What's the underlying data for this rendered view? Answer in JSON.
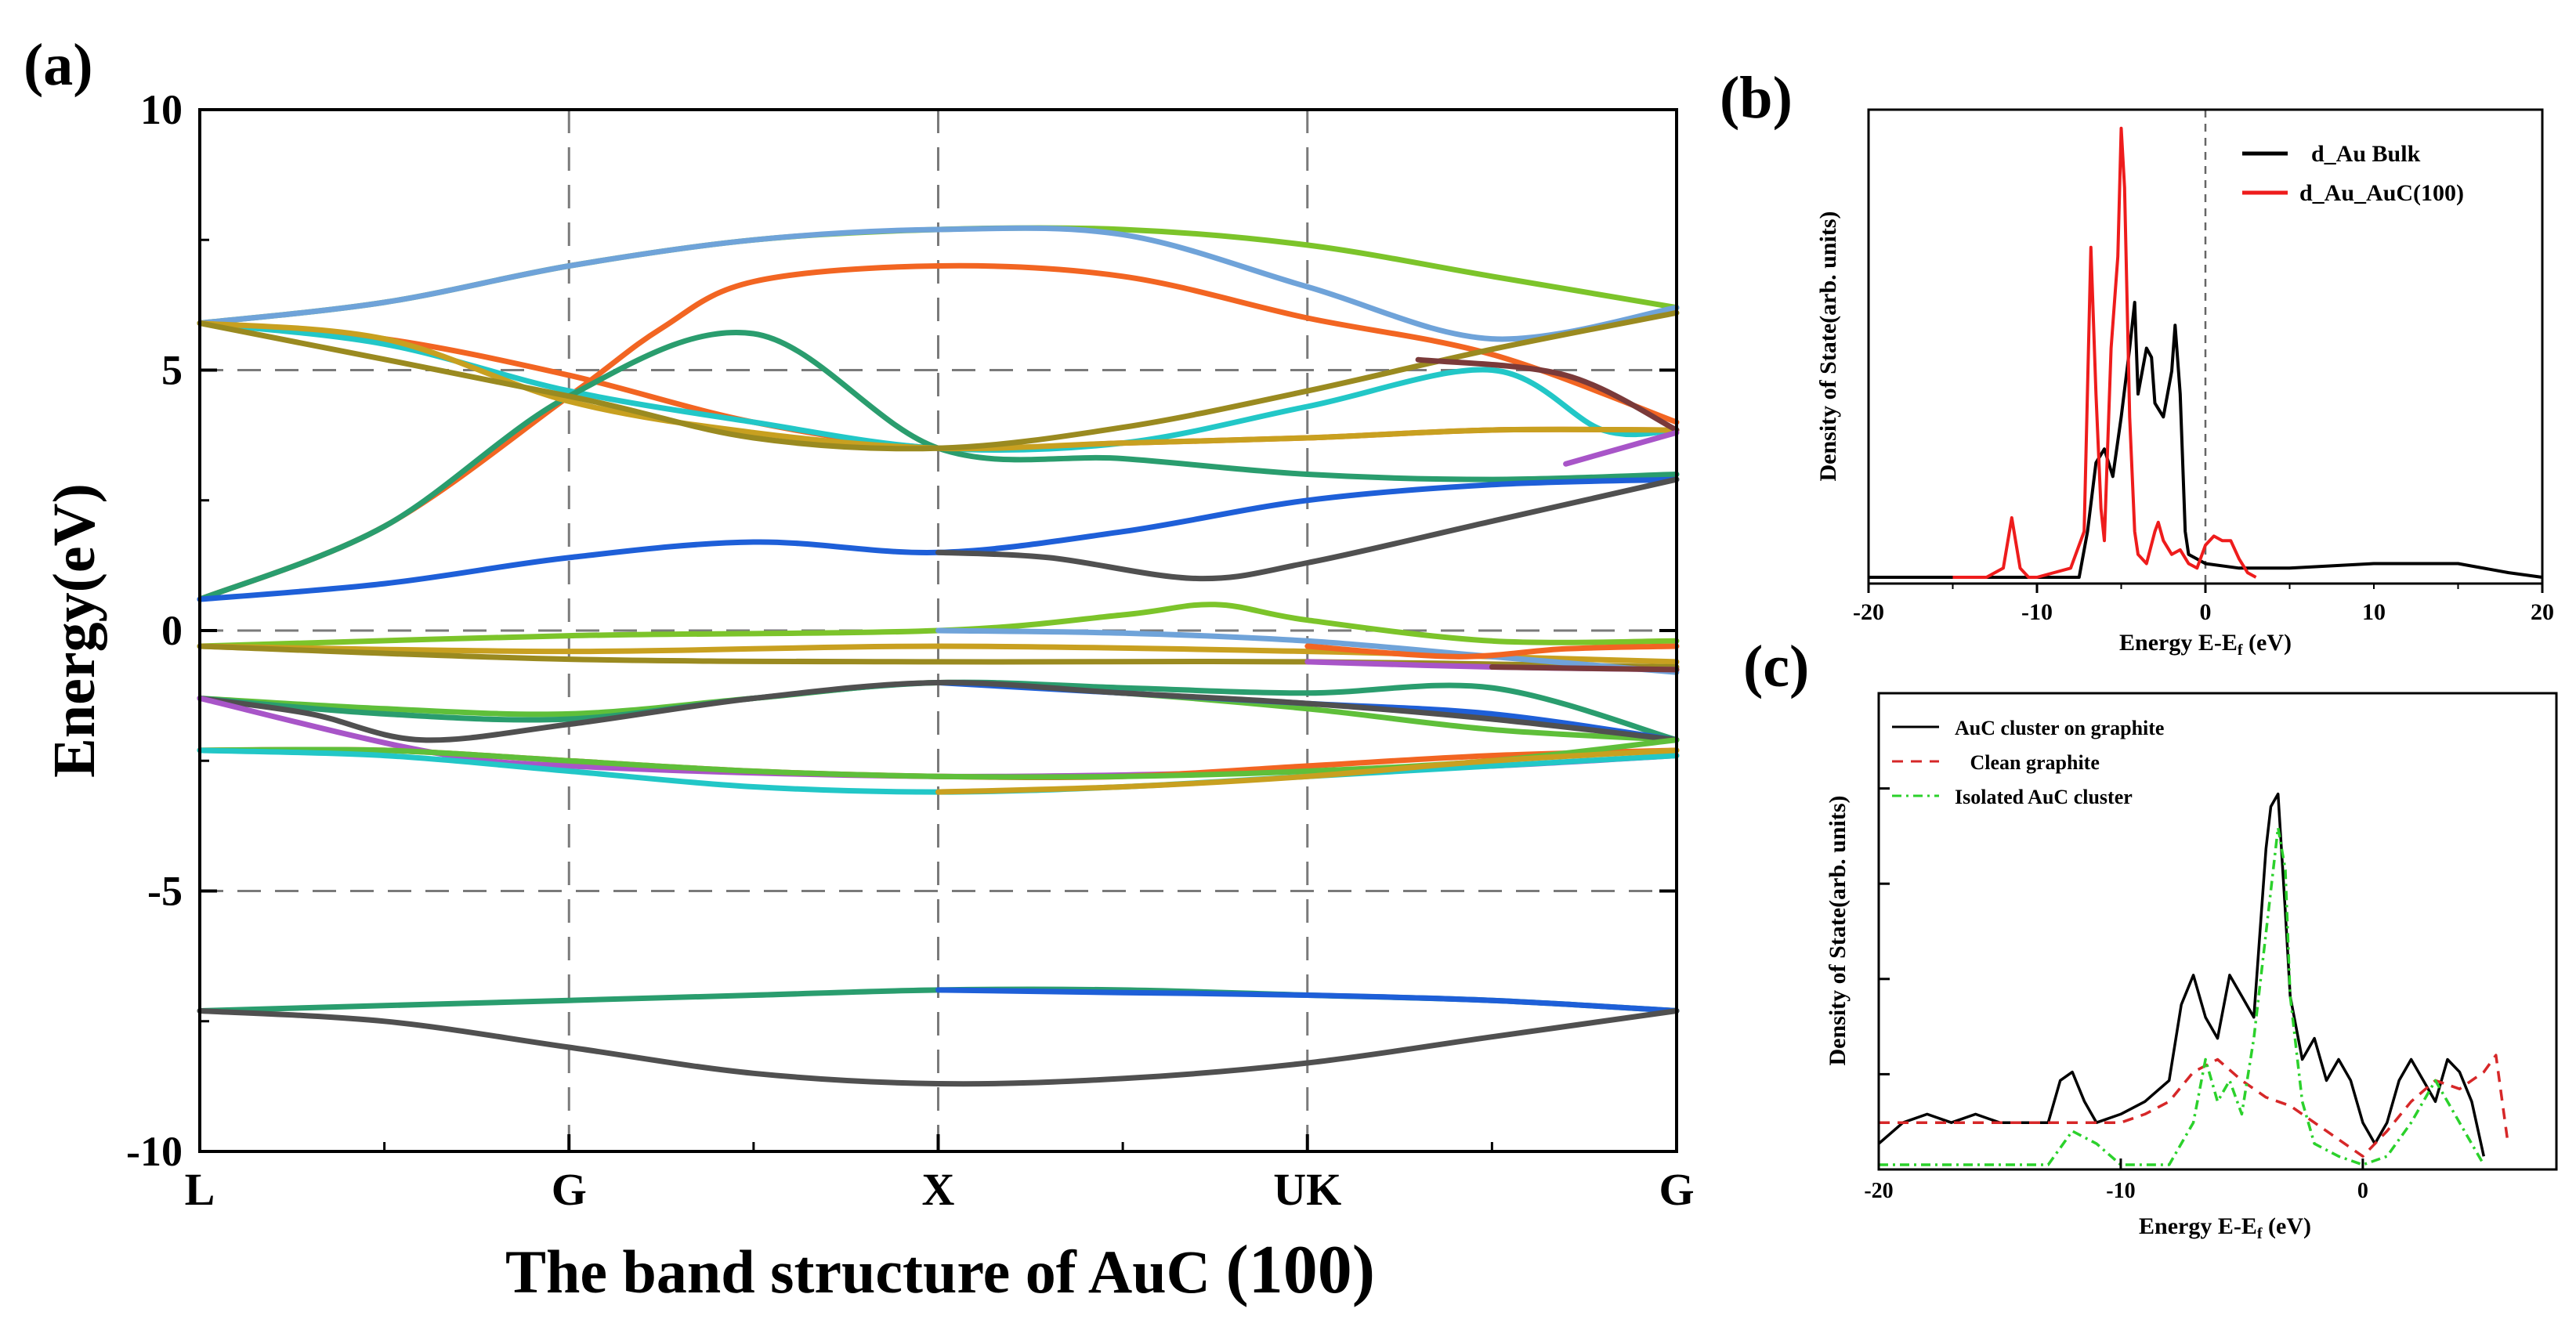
{
  "panel_labels": {
    "a": "(a)",
    "b": "(b)",
    "c": "(c)"
  },
  "chart_data": [
    {
      "id": "a",
      "type": "line",
      "title": "The band structure of AuC (100)",
      "title_main": "The band structure of AuC ",
      "title_tail": "(100)",
      "xlabel": "",
      "ylabel": "Energy(eV)",
      "ylim": [
        -10,
        10
      ],
      "yticks": [
        10,
        5,
        0,
        -5,
        -10
      ],
      "xlim": [
        0,
        4
      ],
      "kpoints": [
        {
          "label": "L",
          "x": 0
        },
        {
          "label": "G",
          "x": 1
        },
        {
          "label": "X",
          "x": 2
        },
        {
          "label": "UK",
          "x": 3
        },
        {
          "label": "G",
          "x": 4
        }
      ],
      "grid_y": [
        5,
        0,
        -5
      ],
      "grid_x": [
        1,
        2,
        3
      ],
      "series": [
        {
          "name": "band-green-top",
          "color": "#7cc42a",
          "x": [
            0,
            0.5,
            1,
            1.5,
            2,
            2.5,
            3,
            3.5,
            4
          ],
          "y": [
            5.9,
            6.3,
            7.0,
            7.5,
            7.7,
            7.7,
            7.4,
            6.8,
            6.2
          ]
        },
        {
          "name": "band-lightblue",
          "color": "#6fa3d9",
          "x": [
            0,
            0.5,
            1,
            1.5,
            2,
            2.5,
            3,
            3.5,
            4
          ],
          "y": [
            5.9,
            6.3,
            7.0,
            7.5,
            7.7,
            7.6,
            6.6,
            5.6,
            6.2
          ]
        },
        {
          "name": "band-orange-up",
          "color": "#f26522",
          "x": [
            0,
            0.5,
            1,
            1.25,
            1.5,
            2,
            2.5,
            3,
            3.5,
            4
          ],
          "y": [
            0.6,
            2.0,
            4.5,
            5.8,
            6.7,
            7.0,
            6.8,
            6.0,
            5.3,
            4.0
          ]
        },
        {
          "name": "band-orange-down",
          "color": "#f26522",
          "x": [
            0,
            0.5,
            1,
            1.5,
            2,
            2.5,
            3,
            3.5,
            4
          ],
          "y": [
            5.9,
            5.6,
            4.9,
            4.0,
            3.5,
            3.6,
            3.7,
            3.85,
            3.85
          ]
        },
        {
          "name": "band-cyan",
          "color": "#22c7c7",
          "x": [
            0,
            0.5,
            1,
            1.5,
            2,
            2.5,
            3,
            3.5,
            3.8,
            4
          ],
          "y": [
            5.9,
            5.5,
            4.6,
            4.0,
            3.5,
            3.6,
            4.3,
            5.0,
            3.85,
            3.85
          ]
        },
        {
          "name": "band-tealgreen-up",
          "color": "#2a9d6e",
          "x": [
            0,
            0.5,
            1,
            1.5,
            2,
            2.5,
            3,
            3.5,
            4
          ],
          "y": [
            0.6,
            2.0,
            4.5,
            5.7,
            3.5,
            3.3,
            3.0,
            2.9,
            3.0
          ]
        },
        {
          "name": "band-gold",
          "color": "#c8a020",
          "x": [
            0,
            0.5,
            1,
            1.5,
            2,
            2.5,
            3,
            3.5,
            4
          ],
          "y": [
            5.9,
            5.6,
            4.4,
            3.8,
            3.5,
            3.6,
            3.7,
            3.85,
            3.85
          ]
        },
        {
          "name": "band-olive",
          "color": "#9a8a20",
          "x": [
            0,
            1,
            1.5,
            2,
            2.5,
            3,
            3.5,
            4
          ],
          "y": [
            5.9,
            4.5,
            3.7,
            3.5,
            3.9,
            4.6,
            5.4,
            6.1
          ]
        },
        {
          "name": "band-maroon",
          "color": "#7a3a3a",
          "x": [
            3.3,
            3.7,
            4
          ],
          "y": [
            5.2,
            4.9,
            3.85
          ]
        },
        {
          "name": "band-purple-top",
          "color": "#a855c8",
          "x": [
            3.7,
            4
          ],
          "y": [
            3.2,
            3.8
          ]
        },
        {
          "name": "band-blue-mid",
          "color": "#1e5fd8",
          "x": [
            0,
            0.5,
            1,
            1.5,
            2,
            2.5,
            3,
            3.5,
            4
          ],
          "y": [
            0.6,
            0.9,
            1.4,
            1.7,
            1.5,
            1.9,
            2.5,
            2.8,
            2.9
          ]
        },
        {
          "name": "band-gray-mid",
          "color": "#505050",
          "x": [
            2,
            2.3,
            2.7,
            3,
            3.5,
            4
          ],
          "y": [
            1.5,
            1.4,
            1.0,
            1.3,
            2.1,
            2.9
          ]
        },
        {
          "name": "band-green-05",
          "color": "#7cc42a",
          "x": [
            0,
            1,
            2,
            2.5,
            2.75,
            3,
            3.5,
            4
          ],
          "y": [
            -0.3,
            -0.1,
            0.0,
            0.3,
            0.5,
            0.2,
            -0.2,
            -0.2
          ]
        },
        {
          "name": "band-gold-0",
          "color": "#c8a020",
          "x": [
            0,
            1,
            2,
            3,
            3.5,
            4
          ],
          "y": [
            -0.3,
            -0.4,
            -0.3,
            -0.4,
            -0.5,
            -0.6
          ]
        },
        {
          "name": "band-olive-0",
          "color": "#9a8a20",
          "x": [
            0,
            1,
            2,
            3,
            4
          ],
          "y": [
            -0.3,
            -0.55,
            -0.6,
            -0.6,
            -0.7
          ]
        },
        {
          "name": "band-lightblue-0",
          "color": "#6fa3d9",
          "x": [
            2,
            2.5,
            3,
            3.5,
            4
          ],
          "y": [
            0.0,
            -0.05,
            -0.2,
            -0.5,
            -0.8
          ]
        },
        {
          "name": "band-purple-0",
          "color": "#a855c8",
          "x": [
            3,
            3.5,
            4
          ],
          "y": [
            -0.6,
            -0.7,
            -0.75
          ]
        },
        {
          "name": "band-orange-0",
          "color": "#f26522",
          "x": [
            3,
            3.4,
            3.7,
            4
          ],
          "y": [
            -0.3,
            -0.5,
            -0.35,
            -0.3
          ]
        },
        {
          "name": "band-maroon-0",
          "color": "#7a3a3a",
          "x": [
            3.5,
            4
          ],
          "y": [
            -0.7,
            -0.75
          ]
        },
        {
          "name": "band-green-m1",
          "color": "#5fbf3a",
          "x": [
            0,
            0.5,
            1,
            1.5,
            2,
            2.5,
            3,
            3.5,
            4
          ],
          "y": [
            -1.3,
            -1.5,
            -1.6,
            -1.3,
            -1.0,
            -1.2,
            -1.5,
            -1.9,
            -2.1
          ]
        },
        {
          "name": "band-tealgreen-m1",
          "color": "#2a9d6e",
          "x": [
            0,
            0.5,
            1,
            1.5,
            2,
            2.5,
            3,
            3.5,
            4
          ],
          "y": [
            -1.3,
            -1.6,
            -1.7,
            -1.3,
            -1.0,
            -1.1,
            -1.2,
            -1.1,
            -2.1
          ]
        },
        {
          "name": "band-blue-m1",
          "color": "#1e5fd8",
          "x": [
            2,
            2.5,
            3,
            3.5,
            4
          ],
          "y": [
            -1.0,
            -1.2,
            -1.4,
            -1.6,
            -2.1
          ]
        },
        {
          "name": "band-gray-m1",
          "color": "#505050",
          "x": [
            0,
            0.3,
            0.6,
            1,
            1.5,
            2,
            2.5,
            3,
            3.5,
            4
          ],
          "y": [
            -1.3,
            -1.6,
            -2.1,
            -1.8,
            -1.3,
            -1.0,
            -1.2,
            -1.4,
            -1.7,
            -2.1
          ]
        },
        {
          "name": "band-purple-m2",
          "color": "#a855c8",
          "x": [
            0,
            0.6,
            1,
            2,
            3,
            3.5,
            4
          ],
          "y": [
            -1.3,
            -2.3,
            -2.6,
            -2.8,
            -2.7,
            -2.6,
            -2.4
          ]
        },
        {
          "name": "band-orange-m2",
          "color": "#f26522",
          "x": [
            0,
            0.5,
            1,
            1.5,
            2,
            2.5,
            3,
            3.5,
            4
          ],
          "y": [
            -2.3,
            -2.3,
            -2.5,
            -2.7,
            -2.8,
            -2.8,
            -2.6,
            -2.4,
            -2.3
          ]
        },
        {
          "name": "band-green-m2",
          "color": "#5fbf3a",
          "x": [
            0,
            0.5,
            1,
            1.5,
            2,
            2.5,
            3,
            3.5,
            4
          ],
          "y": [
            -2.3,
            -2.3,
            -2.5,
            -2.7,
            -2.8,
            -2.8,
            -2.7,
            -2.5,
            -2.1
          ]
        },
        {
          "name": "band-cyan-m3",
          "color": "#22c7c7",
          "x": [
            0,
            0.5,
            1,
            1.5,
            2,
            2.5,
            3,
            3.5,
            4
          ],
          "y": [
            -2.3,
            -2.4,
            -2.7,
            -3.0,
            -3.1,
            -3.0,
            -2.8,
            -2.6,
            -2.4
          ]
        },
        {
          "name": "band-gold-m3",
          "color": "#c8a020",
          "x": [
            2,
            2.5,
            3,
            3.5,
            4
          ],
          "y": [
            -3.1,
            -3.0,
            -2.8,
            -2.5,
            -2.3
          ]
        },
        {
          "name": "band-teal-m7",
          "color": "#2a9d6e",
          "x": [
            0,
            0.5,
            1,
            1.5,
            2,
            2.5,
            3,
            3.5,
            4
          ],
          "y": [
            -7.3,
            -7.2,
            -7.1,
            -7.0,
            -6.9,
            -6.9,
            -7.0,
            -7.1,
            -7.3
          ]
        },
        {
          "name": "band-blue-m7",
          "color": "#1e5fd8",
          "x": [
            2,
            2.5,
            3,
            3.5,
            4
          ],
          "y": [
            -6.9,
            -6.95,
            -7.0,
            -7.1,
            -7.3
          ]
        },
        {
          "name": "band-gray-m8",
          "color": "#505050",
          "x": [
            0,
            0.5,
            1,
            1.5,
            2,
            2.5,
            3,
            3.5,
            4
          ],
          "y": [
            -7.3,
            -7.5,
            -8.0,
            -8.5,
            -8.7,
            -8.6,
            -8.3,
            -7.8,
            -7.3
          ]
        }
      ]
    },
    {
      "id": "b",
      "type": "line",
      "title": "",
      "xlabel": "Energy E-E",
      "xlabel_sub": "f",
      "xlabel_unit": " (eV)",
      "ylabel": "Density of State(arb. units)",
      "xlim": [
        -20,
        20
      ],
      "xticks": [
        -20,
        -10,
        0,
        20
      ],
      "ylim": [
        0,
        1
      ],
      "vline": 0,
      "legend_position": "top-right",
      "series": [
        {
          "name": "d_Au Bulk",
          "color": "#000000",
          "x": [
            -20,
            -10,
            -7.5,
            -7,
            -6.5,
            -6,
            -5.5,
            -5,
            -4.5,
            -4.2,
            -4,
            -3.5,
            -3.2,
            -3,
            -2.5,
            -2,
            -1.8,
            -1.5,
            -1.2,
            -1,
            -0.5,
            0,
            2,
            5,
            10,
            15,
            18,
            20
          ],
          "y": [
            0,
            0,
            0.0,
            0.1,
            0.25,
            0.28,
            0.22,
            0.35,
            0.5,
            0.6,
            0.4,
            0.5,
            0.48,
            0.38,
            0.35,
            0.45,
            0.55,
            0.4,
            0.1,
            0.05,
            0.04,
            0.03,
            0.02,
            0.02,
            0.03,
            0.03,
            0.01,
            0
          ]
        },
        {
          "name": "d_Au_AuC(100)",
          "color": "#ee1c1c",
          "x": [
            -15,
            -13,
            -12,
            -11.5,
            -11,
            -10.5,
            -10,
            -8,
            -7.2,
            -6.8,
            -6.5,
            -6.2,
            -6,
            -5.6,
            -5.2,
            -5,
            -4.8,
            -4.5,
            -4.2,
            -4,
            -3.5,
            -3,
            -2.8,
            -2.5,
            -2,
            -1.5,
            -1,
            -0.5,
            0,
            0.5,
            1,
            1.5,
            2,
            2.5,
            3
          ],
          "y": [
            0,
            0,
            0.02,
            0.13,
            0.02,
            0,
            0,
            0.02,
            0.1,
            0.72,
            0.4,
            0.15,
            0.08,
            0.5,
            0.7,
            0.98,
            0.85,
            0.35,
            0.1,
            0.05,
            0.03,
            0.1,
            0.12,
            0.08,
            0.05,
            0.06,
            0.03,
            0.02,
            0.07,
            0.09,
            0.08,
            0.08,
            0.04,
            0.01,
            0
          ]
        }
      ]
    },
    {
      "id": "c",
      "type": "line",
      "title": "",
      "xlabel": "Energy E-E",
      "xlabel_sub": "f",
      "xlabel_unit": " (eV)",
      "ylabel": "Density of State(arb. units)",
      "xlim": [
        -20,
        8
      ],
      "xticks": [
        -20,
        -10,
        0
      ],
      "ylim": [
        0,
        1
      ],
      "legend_position": "top-left",
      "series": [
        {
          "name": "AuC cluster on graphite",
          "color": "#000000",
          "dash": "",
          "x": [
            -20,
            -19,
            -18,
            -17,
            -16,
            -15,
            -14,
            -13,
            -12.5,
            -12,
            -11.5,
            -11,
            -10,
            -9,
            -8,
            -7.5,
            -7,
            -6.5,
            -6,
            -5.5,
            -5,
            -4.5,
            -4,
            -3.8,
            -3.5,
            -3.2,
            -3,
            -2.5,
            -2,
            -1.5,
            -1,
            -0.5,
            0,
            0.5,
            1,
            1.5,
            2,
            2.5,
            3,
            3.5,
            4,
            4.5,
            5
          ],
          "y": [
            0.05,
            0.1,
            0.12,
            0.1,
            0.12,
            0.1,
            0.1,
            0.1,
            0.2,
            0.22,
            0.15,
            0.1,
            0.12,
            0.15,
            0.2,
            0.38,
            0.45,
            0.35,
            0.3,
            0.45,
            0.4,
            0.35,
            0.75,
            0.85,
            0.88,
            0.6,
            0.4,
            0.25,
            0.3,
            0.2,
            0.25,
            0.2,
            0.1,
            0.05,
            0.1,
            0.2,
            0.25,
            0.2,
            0.15,
            0.25,
            0.22,
            0.15,
            0.02
          ]
        },
        {
          "name": "Clean graphite",
          "label_text": "   Clean graphite",
          "color": "#d62728",
          "dash": "14,10",
          "x": [
            -20,
            -18,
            -16,
            -14,
            -12,
            -10,
            -9,
            -8,
            -7,
            -6,
            -5,
            -4,
            -3,
            -2,
            -1,
            0,
            1,
            2,
            3,
            4,
            5,
            5.5,
            6
          ],
          "y": [
            0.1,
            0.1,
            0.1,
            0.1,
            0.1,
            0.1,
            0.12,
            0.15,
            0.22,
            0.25,
            0.2,
            0.16,
            0.14,
            0.1,
            0.06,
            0.02,
            0.08,
            0.15,
            0.2,
            0.18,
            0.22,
            0.26,
            0.05
          ]
        },
        {
          "name": "Isolated AuC cluster",
          "color": "#2bd12b",
          "dash": "12,6,3,6",
          "x": [
            -20,
            -15,
            -13,
            -12,
            -11,
            -10,
            -8,
            -7,
            -6.5,
            -6,
            -5.5,
            -5,
            -4.5,
            -4,
            -3.5,
            -3.2,
            -3,
            -2.5,
            -2,
            -1,
            0,
            1,
            2,
            3,
            4,
            5
          ],
          "y": [
            0,
            0,
            0,
            0.08,
            0.05,
            0,
            0,
            0.1,
            0.25,
            0.15,
            0.2,
            0.12,
            0.3,
            0.55,
            0.8,
            0.7,
            0.4,
            0.15,
            0.05,
            0.02,
            0,
            0.02,
            0.1,
            0.2,
            0.1,
            0
          ]
        }
      ]
    }
  ]
}
